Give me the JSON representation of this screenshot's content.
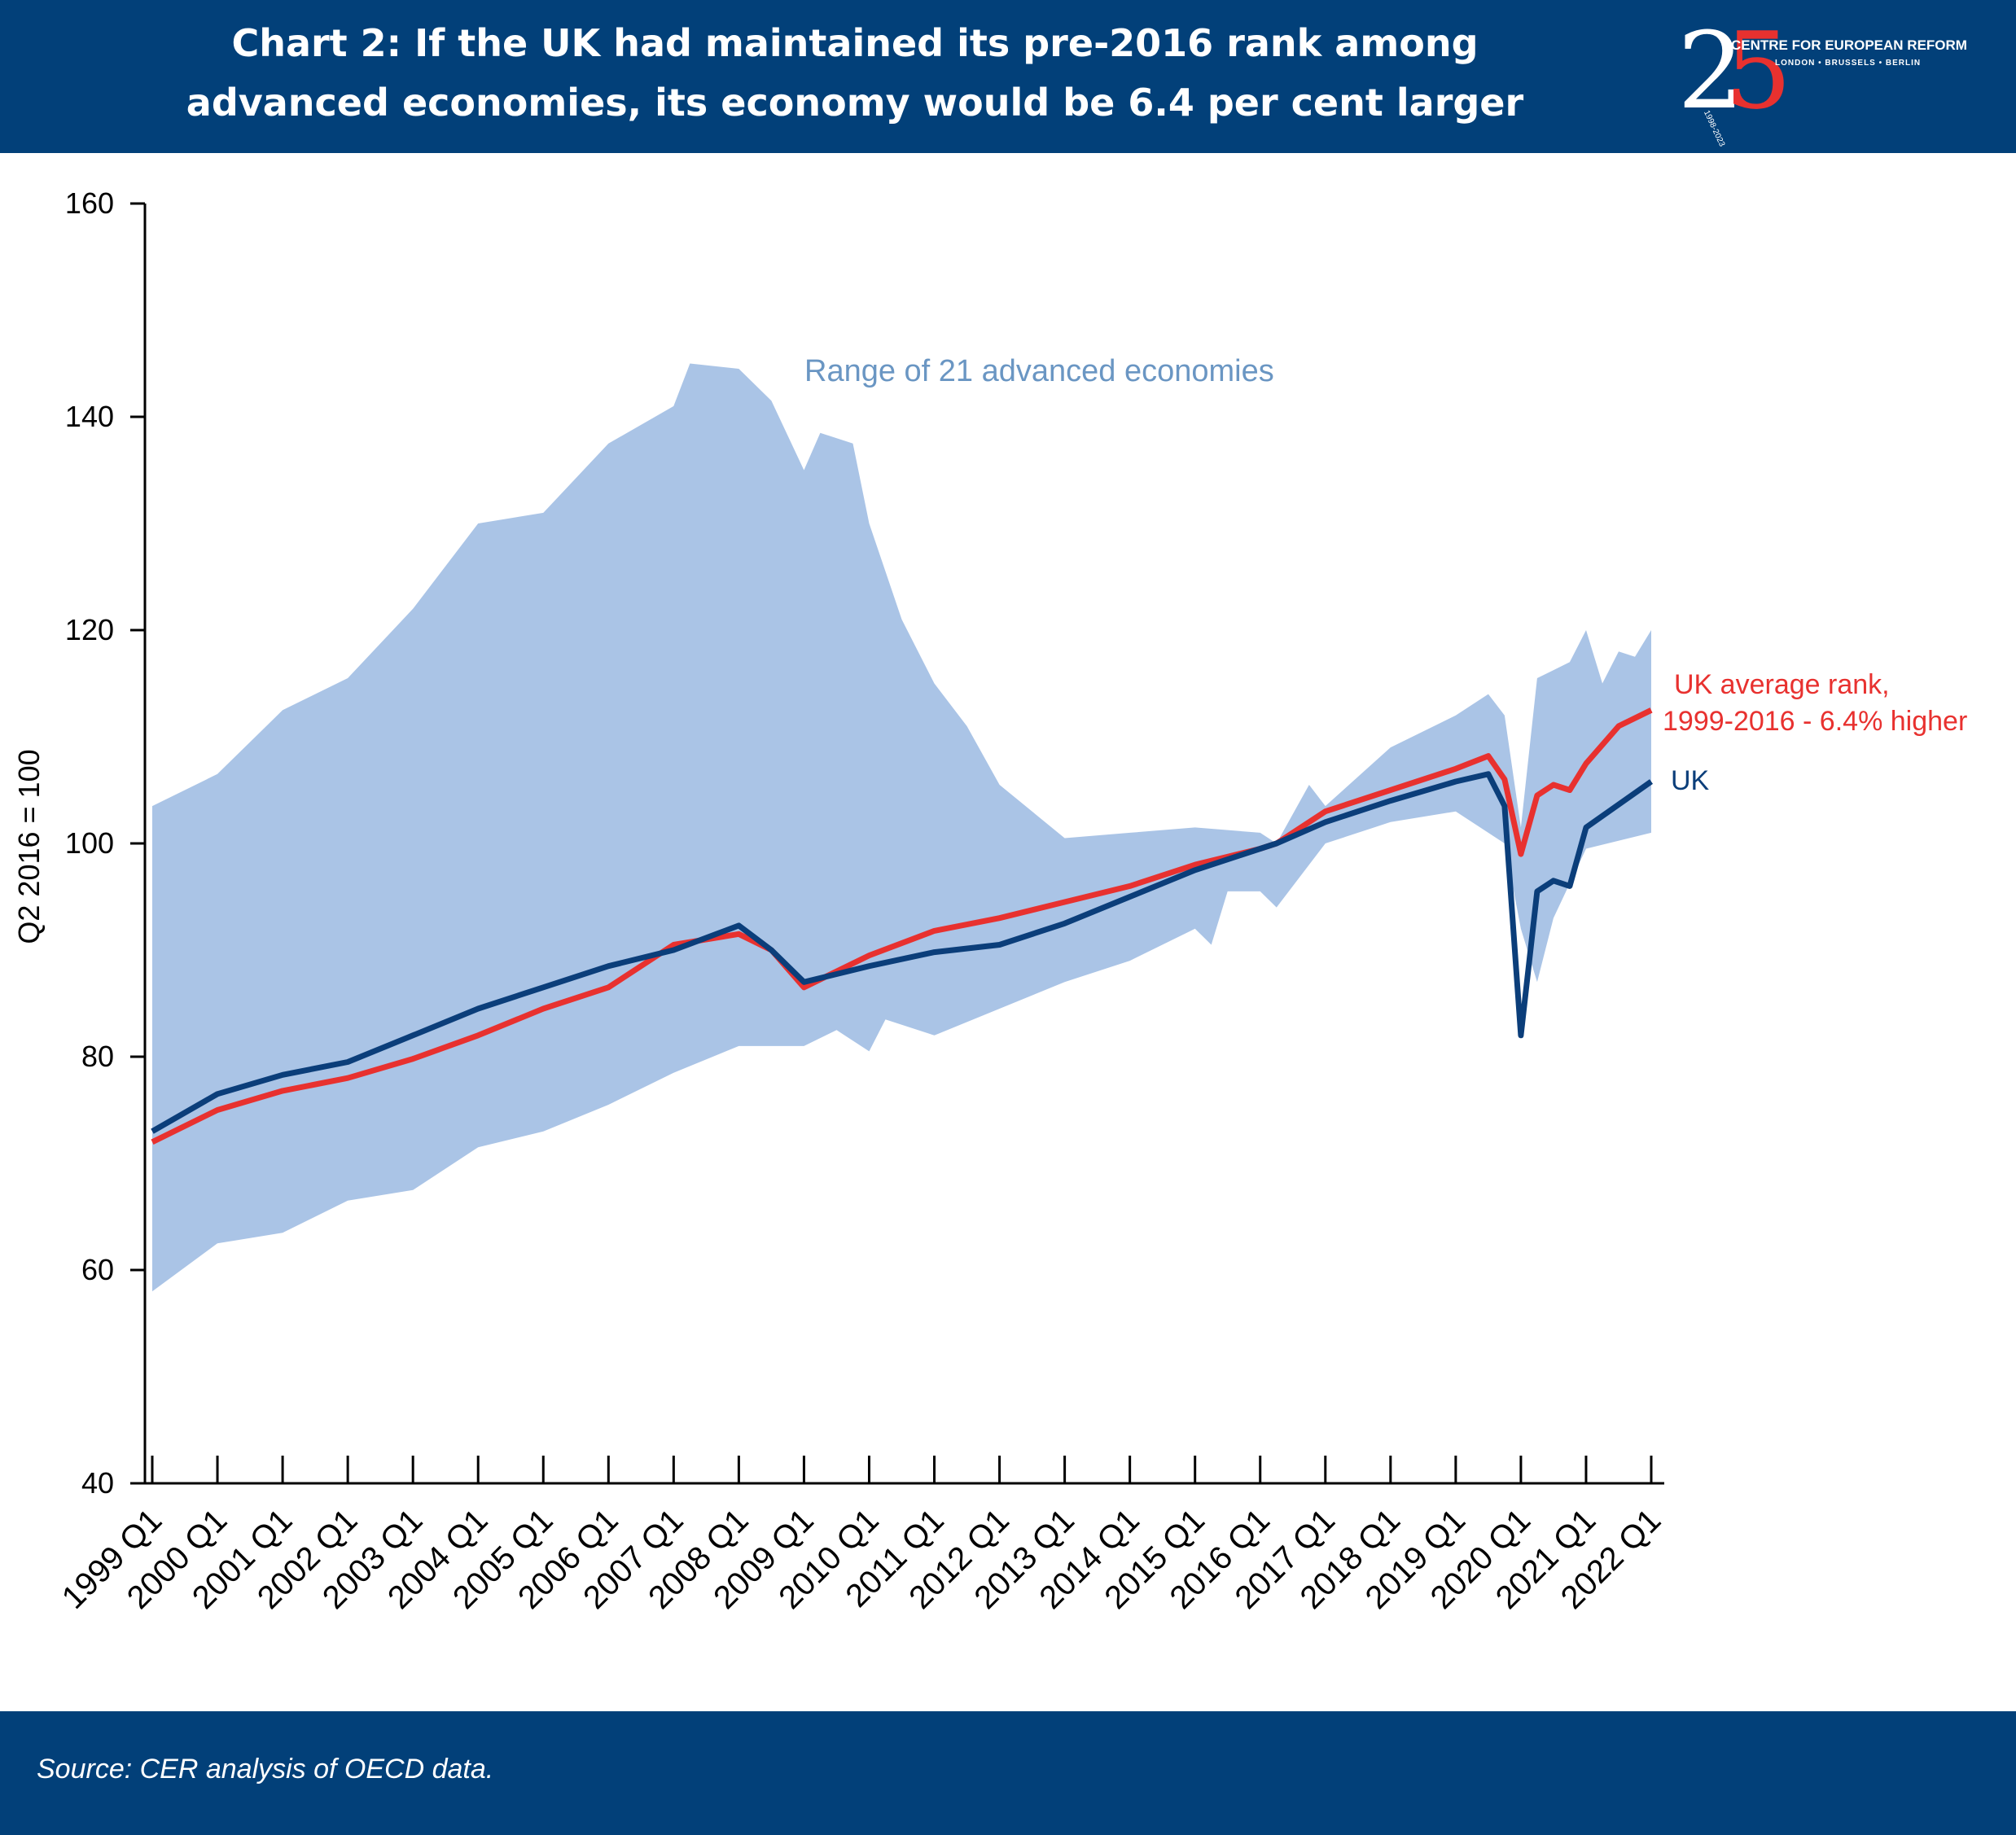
{
  "header": {
    "title_line1": "Chart 2: If the UK had maintained its pre-2016 rank among",
    "title_line2": "advanced economies, its economy would be 6.4 per cent larger"
  },
  "logo": {
    "digit_2": "2",
    "digit_5": "5",
    "name": "CENTRE FOR EUROPEAN REFORM",
    "cities": "LONDON • BRUSSELS • BERLIN",
    "years": "1998-2023"
  },
  "footer": {
    "source": "Source: CER analysis of  OECD data."
  },
  "colors": {
    "header_bg": "#024079",
    "range_fill": "#aac4e6",
    "range_label": "#6a96c3",
    "uk_line": "#0b3e7a",
    "avg_rank_line": "#e8312f"
  },
  "chart_data": {
    "type": "line",
    "title": "Chart 2: If the UK had maintained its pre-2016 rank among advanced economies, its economy would be 6.4 per cent larger",
    "xlabel": "",
    "ylabel": "Q2 2016 = 100",
    "ylim": [
      40,
      160
    ],
    "yticks": [
      40,
      60,
      80,
      100,
      120,
      140,
      160
    ],
    "x_start": "1999 Q1",
    "x_end": "2022 Q1",
    "x_tick_labels": [
      "1999 Q1",
      "2000 Q1",
      "2001 Q1",
      "2002 Q1",
      "2003 Q1",
      "2004 Q1",
      "2005 Q1",
      "2006 Q1",
      "2007 Q1",
      "2008 Q1",
      "2009 Q1",
      "2010 Q1",
      "2011 Q1",
      "2012 Q1",
      "2013 Q1",
      "2014 Q1",
      "2015 Q1",
      "2016 Q1",
      "2017 Q1",
      "2018 Q1",
      "2019 Q1",
      "2020 Q1",
      "2021 Q1",
      "2022 Q1"
    ],
    "grid": false,
    "annotations": {
      "range_label": "Range of 21 advanced economies",
      "avg_label_line1": "UK average rank,",
      "avg_label_line2": "1999-2016 - 6.4% higher",
      "uk_label": "UK"
    },
    "range_band": {
      "name": "Range of 21 advanced economies",
      "upper": [
        {
          "x": "1999 Q1",
          "y": 103.5
        },
        {
          "x": "2000 Q1",
          "y": 106.5
        },
        {
          "x": "2001 Q1",
          "y": 112.5
        },
        {
          "x": "2002 Q1",
          "y": 115.5
        },
        {
          "x": "2003 Q1",
          "y": 122
        },
        {
          "x": "2004 Q1",
          "y": 130
        },
        {
          "x": "2005 Q1",
          "y": 131
        },
        {
          "x": "2006 Q1",
          "y": 137.5
        },
        {
          "x": "2007 Q1",
          "y": 141
        },
        {
          "x": "2007 Q2",
          "y": 145
        },
        {
          "x": "2008 Q1",
          "y": 144.5
        },
        {
          "x": "2008 Q3",
          "y": 141.5
        },
        {
          "x": "2009 Q1",
          "y": 135
        },
        {
          "x": "2009 Q2",
          "y": 138.5
        },
        {
          "x": "2009 Q4",
          "y": 137.5
        },
        {
          "x": "2010 Q1",
          "y": 130
        },
        {
          "x": "2010 Q3",
          "y": 121
        },
        {
          "x": "2011 Q1",
          "y": 115
        },
        {
          "x": "2011 Q3",
          "y": 111
        },
        {
          "x": "2012 Q1",
          "y": 105.5
        },
        {
          "x": "2013 Q1",
          "y": 100.5
        },
        {
          "x": "2014 Q1",
          "y": 101
        },
        {
          "x": "2015 Q1",
          "y": 101.5
        },
        {
          "x": "2016 Q1",
          "y": 101
        },
        {
          "x": "2016 Q2",
          "y": 100
        },
        {
          "x": "2016 Q4",
          "y": 105.5
        },
        {
          "x": "2017 Q1",
          "y": 103.5
        },
        {
          "x": "2018 Q1",
          "y": 109
        },
        {
          "x": "2019 Q1",
          "y": 112
        },
        {
          "x": "2019 Q3",
          "y": 114
        },
        {
          "x": "2019 Q4",
          "y": 112
        },
        {
          "x": "2020 Q1",
          "y": 101.5
        },
        {
          "x": "2020 Q2",
          "y": 115.5
        },
        {
          "x": "2020 Q4",
          "y": 117
        },
        {
          "x": "2021 Q1",
          "y": 120
        },
        {
          "x": "2021 Q2",
          "y": 115
        },
        {
          "x": "2021 Q3",
          "y": 118
        },
        {
          "x": "2021 Q4",
          "y": 117.5
        },
        {
          "x": "2022 Q1",
          "y": 120
        }
      ],
      "lower": [
        {
          "x": "1999 Q1",
          "y": 58
        },
        {
          "x": "2000 Q1",
          "y": 62.5
        },
        {
          "x": "2001 Q1",
          "y": 63.5
        },
        {
          "x": "2002 Q1",
          "y": 66.5
        },
        {
          "x": "2003 Q1",
          "y": 67.5
        },
        {
          "x": "2004 Q1",
          "y": 71.5
        },
        {
          "x": "2005 Q1",
          "y": 73
        },
        {
          "x": "2006 Q1",
          "y": 75.5
        },
        {
          "x": "2007 Q1",
          "y": 78.5
        },
        {
          "x": "2008 Q1",
          "y": 81
        },
        {
          "x": "2009 Q1",
          "y": 81
        },
        {
          "x": "2009 Q3",
          "y": 82.5
        },
        {
          "x": "2010 Q1",
          "y": 80.5
        },
        {
          "x": "2010 Q2",
          "y": 83.5
        },
        {
          "x": "2011 Q1",
          "y": 82
        },
        {
          "x": "2012 Q1",
          "y": 84.5
        },
        {
          "x": "2013 Q1",
          "y": 87
        },
        {
          "x": "2014 Q1",
          "y": 89
        },
        {
          "x": "2015 Q1",
          "y": 92
        },
        {
          "x": "2015 Q2",
          "y": 90.5
        },
        {
          "x": "2015 Q3",
          "y": 95.5
        },
        {
          "x": "2016 Q1",
          "y": 95.5
        },
        {
          "x": "2016 Q2",
          "y": 94
        },
        {
          "x": "2017 Q1",
          "y": 100
        },
        {
          "x": "2018 Q1",
          "y": 102
        },
        {
          "x": "2019 Q1",
          "y": 103
        },
        {
          "x": "2019 Q4",
          "y": 100
        },
        {
          "x": "2020 Q1",
          "y": 92
        },
        {
          "x": "2020 Q2",
          "y": 87
        },
        {
          "x": "2020 Q3",
          "y": 93
        },
        {
          "x": "2021 Q1",
          "y": 99.5
        },
        {
          "x": "2022 Q1",
          "y": 101
        }
      ]
    },
    "series": [
      {
        "name": "UK",
        "color": "#0b3e7a",
        "points": [
          {
            "x": "1999 Q1",
            "y": 73
          },
          {
            "x": "2000 Q1",
            "y": 76.5
          },
          {
            "x": "2001 Q1",
            "y": 78.3
          },
          {
            "x": "2002 Q1",
            "y": 79.5
          },
          {
            "x": "2003 Q1",
            "y": 82
          },
          {
            "x": "2004 Q1",
            "y": 84.5
          },
          {
            "x": "2005 Q1",
            "y": 86.5
          },
          {
            "x": "2006 Q1",
            "y": 88.5
          },
          {
            "x": "2007 Q1",
            "y": 90
          },
          {
            "x": "2008 Q1",
            "y": 92.3
          },
          {
            "x": "2008 Q3",
            "y": 90
          },
          {
            "x": "2009 Q1",
            "y": 87
          },
          {
            "x": "2010 Q1",
            "y": 88.5
          },
          {
            "x": "2011 Q1",
            "y": 89.8
          },
          {
            "x": "2012 Q1",
            "y": 90.5
          },
          {
            "x": "2013 Q1",
            "y": 92.5
          },
          {
            "x": "2014 Q1",
            "y": 95
          },
          {
            "x": "2015 Q1",
            "y": 97.5
          },
          {
            "x": "2016 Q1",
            "y": 99.5
          },
          {
            "x": "2016 Q2",
            "y": 100
          },
          {
            "x": "2017 Q1",
            "y": 102
          },
          {
            "x": "2018 Q1",
            "y": 104
          },
          {
            "x": "2019 Q1",
            "y": 105.8
          },
          {
            "x": "2019 Q3",
            "y": 106.5
          },
          {
            "x": "2019 Q4",
            "y": 103.5
          },
          {
            "x": "2020 Q1",
            "y": 82
          },
          {
            "x": "2020 Q2",
            "y": 95.5
          },
          {
            "x": "2020 Q3",
            "y": 96.5
          },
          {
            "x": "2020 Q4",
            "y": 96
          },
          {
            "x": "2021 Q1",
            "y": 101.5
          },
          {
            "x": "2022 Q1",
            "y": 105.8
          }
        ]
      },
      {
        "name": "UK average rank, 1999-2016 - 6.4% higher",
        "color": "#e8312f",
        "points": [
          {
            "x": "1999 Q1",
            "y": 72
          },
          {
            "x": "2000 Q1",
            "y": 75
          },
          {
            "x": "2001 Q1",
            "y": 76.8
          },
          {
            "x": "2002 Q1",
            "y": 78
          },
          {
            "x": "2003 Q1",
            "y": 79.8
          },
          {
            "x": "2004 Q1",
            "y": 82
          },
          {
            "x": "2005 Q1",
            "y": 84.5
          },
          {
            "x": "2006 Q1",
            "y": 86.5
          },
          {
            "x": "2007 Q1",
            "y": 90.5
          },
          {
            "x": "2008 Q1",
            "y": 91.5
          },
          {
            "x": "2008 Q3",
            "y": 90
          },
          {
            "x": "2009 Q1",
            "y": 86.5
          },
          {
            "x": "2010 Q1",
            "y": 89.5
          },
          {
            "x": "2011 Q1",
            "y": 91.8
          },
          {
            "x": "2012 Q1",
            "y": 93
          },
          {
            "x": "2013 Q1",
            "y": 94.5
          },
          {
            "x": "2014 Q1",
            "y": 96
          },
          {
            "x": "2015 Q1",
            "y": 98
          },
          {
            "x": "2016 Q1",
            "y": 99.5
          },
          {
            "x": "2016 Q2",
            "y": 100
          },
          {
            "x": "2017 Q1",
            "y": 103
          },
          {
            "x": "2018 Q1",
            "y": 105
          },
          {
            "x": "2019 Q1",
            "y": 107
          },
          {
            "x": "2019 Q3",
            "y": 108.2
          },
          {
            "x": "2019 Q4",
            "y": 106
          },
          {
            "x": "2020 Q1",
            "y": 99
          },
          {
            "x": "2020 Q2",
            "y": 104.5
          },
          {
            "x": "2020 Q3",
            "y": 105.5
          },
          {
            "x": "2020 Q4",
            "y": 105
          },
          {
            "x": "2021 Q1",
            "y": 107.5
          },
          {
            "x": "2021 Q3",
            "y": 111
          },
          {
            "x": "2022 Q1",
            "y": 112.5
          }
        ]
      }
    ]
  }
}
